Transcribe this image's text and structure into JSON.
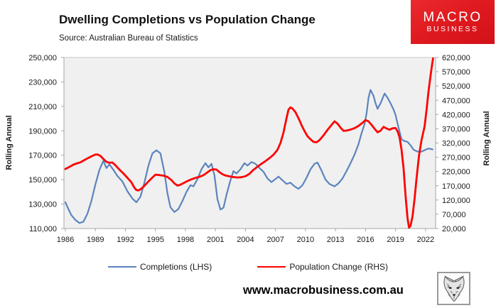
{
  "header": {
    "title": "Dwelling Completions vs Population Change",
    "source": "Source: Australian Bureau of Statistics",
    "logo": {
      "line1": "MACRO",
      "line2": "BUSINESS",
      "bg_color": "#DE1219",
      "text_color": "#FFFFFF"
    }
  },
  "footer": {
    "url": "www.macrobusiness.com.au",
    "icon": "wolf-head-sketch"
  },
  "chart_data": {
    "type": "line",
    "title": "Dwelling Completions vs Population Change",
    "plot_bg": "#F0F0F0",
    "plot_border": "#C8C8C8",
    "axis_color": "#A6A6A6",
    "grid": "off",
    "legend_position": "bottom",
    "left_axis": {
      "label": "Rolling Annual",
      "min": 110000,
      "max": 250000,
      "tick_values": [
        250000,
        230000,
        210000,
        190000,
        170000,
        150000,
        130000,
        110000
      ]
    },
    "right_axis": {
      "label": "Rolling Annual",
      "min": 20000,
      "max": 620000,
      "tick_values": [
        620000,
        570000,
        520000,
        470000,
        420000,
        370000,
        320000,
        270000,
        220000,
        170000,
        120000,
        70000,
        20000
      ]
    },
    "x_axis": {
      "tick_years": [
        1986,
        1989,
        1992,
        1995,
        1998,
        2001,
        2004,
        2007,
        2010,
        2013,
        2016,
        2019,
        2022
      ]
    },
    "series": [
      {
        "name": "Completions (LHS)",
        "axis": "left",
        "color": "#5B84BD",
        "width": 2.2,
        "points": [
          [
            1986.0,
            131500
          ],
          [
            1986.3,
            126000
          ],
          [
            1986.6,
            121000
          ],
          [
            1987.0,
            117000
          ],
          [
            1987.4,
            114500
          ],
          [
            1987.8,
            115500
          ],
          [
            1988.2,
            122000
          ],
          [
            1988.6,
            132500
          ],
          [
            1989.0,
            146000
          ],
          [
            1989.4,
            158000
          ],
          [
            1989.8,
            165500
          ],
          [
            1990.1,
            159500
          ],
          [
            1990.4,
            162500
          ],
          [
            1990.8,
            158000
          ],
          [
            1991.2,
            153000
          ],
          [
            1991.7,
            148500
          ],
          [
            1992.2,
            140500
          ],
          [
            1992.7,
            134500
          ],
          [
            1993.1,
            131500
          ],
          [
            1993.5,
            136000
          ],
          [
            1993.9,
            147500
          ],
          [
            1994.3,
            161500
          ],
          [
            1994.7,
            171500
          ],
          [
            1995.1,
            174000
          ],
          [
            1995.5,
            171500
          ],
          [
            1995.9,
            156000
          ],
          [
            1996.2,
            139000
          ],
          [
            1996.5,
            127500
          ],
          [
            1996.9,
            123500
          ],
          [
            1997.3,
            126000
          ],
          [
            1997.7,
            132500
          ],
          [
            1998.1,
            140000
          ],
          [
            1998.5,
            145500
          ],
          [
            1998.8,
            144500
          ],
          [
            1999.2,
            150500
          ],
          [
            1999.6,
            158500
          ],
          [
            2000.0,
            163500
          ],
          [
            2000.3,
            160000
          ],
          [
            2000.6,
            163000
          ],
          [
            2000.9,
            153500
          ],
          [
            2001.2,
            134000
          ],
          [
            2001.5,
            125500
          ],
          [
            2001.8,
            127000
          ],
          [
            2002.1,
            137500
          ],
          [
            2002.5,
            149500
          ],
          [
            2002.8,
            157000
          ],
          [
            2003.1,
            155000
          ],
          [
            2003.5,
            158500
          ],
          [
            2003.9,
            163500
          ],
          [
            2004.2,
            161500
          ],
          [
            2004.6,
            164500
          ],
          [
            2005.0,
            163000
          ],
          [
            2005.4,
            159500
          ],
          [
            2005.8,
            156500
          ],
          [
            2006.2,
            151000
          ],
          [
            2006.6,
            148000
          ],
          [
            2007.0,
            150500
          ],
          [
            2007.3,
            152500
          ],
          [
            2007.7,
            149500
          ],
          [
            2008.1,
            146500
          ],
          [
            2008.5,
            147500
          ],
          [
            2008.9,
            144500
          ],
          [
            2009.3,
            142500
          ],
          [
            2009.7,
            145500
          ],
          [
            2010.1,
            151500
          ],
          [
            2010.5,
            158500
          ],
          [
            2010.9,
            163000
          ],
          [
            2011.2,
            164000
          ],
          [
            2011.6,
            157500
          ],
          [
            2012.0,
            150000
          ],
          [
            2012.4,
            146500
          ],
          [
            2012.9,
            144500
          ],
          [
            2013.3,
            147000
          ],
          [
            2013.7,
            151000
          ],
          [
            2014.1,
            157000
          ],
          [
            2014.5,
            163500
          ],
          [
            2014.9,
            170500
          ],
          [
            2015.3,
            179000
          ],
          [
            2015.6,
            188000
          ],
          [
            2015.9,
            195500
          ],
          [
            2016.1,
            204000
          ],
          [
            2016.3,
            217000
          ],
          [
            2016.5,
            223500
          ],
          [
            2016.8,
            218500
          ],
          [
            2017.0,
            212500
          ],
          [
            2017.2,
            208000
          ],
          [
            2017.5,
            212500
          ],
          [
            2017.9,
            220500
          ],
          [
            2018.2,
            217000
          ],
          [
            2018.5,
            212500
          ],
          [
            2018.8,
            207500
          ],
          [
            2019.0,
            203000
          ],
          [
            2019.3,
            192500
          ],
          [
            2019.6,
            183000
          ],
          [
            2019.9,
            181500
          ],
          [
            2020.2,
            181000
          ],
          [
            2020.5,
            178000
          ],
          [
            2020.8,
            174500
          ],
          [
            2021.2,
            173000
          ],
          [
            2021.6,
            173000
          ],
          [
            2022.0,
            174500
          ],
          [
            2022.3,
            175500
          ],
          [
            2022.7,
            174800
          ]
        ]
      },
      {
        "name": "Population Change (RHS)",
        "axis": "right",
        "color": "#FE0000",
        "width": 2.8,
        "points": [
          [
            1986.0,
            229000
          ],
          [
            1986.4,
            236000
          ],
          [
            1986.8,
            244000
          ],
          [
            1987.2,
            249000
          ],
          [
            1987.5,
            252000
          ],
          [
            1987.8,
            258000
          ],
          [
            1988.2,
            266000
          ],
          [
            1988.6,
            273000
          ],
          [
            1989.0,
            279500
          ],
          [
            1989.2,
            280000
          ],
          [
            1989.5,
            275000
          ],
          [
            1989.8,
            264000
          ],
          [
            1990.1,
            254000
          ],
          [
            1990.4,
            250500
          ],
          [
            1990.7,
            251500
          ],
          [
            1991.0,
            242000
          ],
          [
            1991.4,
            227000
          ],
          [
            1991.8,
            213000
          ],
          [
            1992.2,
            198000
          ],
          [
            1992.6,
            182000
          ],
          [
            1992.9,
            163000
          ],
          [
            1993.1,
            155000
          ],
          [
            1993.3,
            153500
          ],
          [
            1993.6,
            160000
          ],
          [
            1993.9,
            170000
          ],
          [
            1994.3,
            185000
          ],
          [
            1994.7,
            199000
          ],
          [
            1995.0,
            209000
          ],
          [
            1995.4,
            207500
          ],
          [
            1995.8,
            205500
          ],
          [
            1996.2,
            201000
          ],
          [
            1996.6,
            190000
          ],
          [
            1996.9,
            178000
          ],
          [
            1997.2,
            170500
          ],
          [
            1997.5,
            173500
          ],
          [
            1997.8,
            179000
          ],
          [
            1998.2,
            186500
          ],
          [
            1998.6,
            192500
          ],
          [
            1999.0,
            197500
          ],
          [
            1999.4,
            201500
          ],
          [
            1999.8,
            207000
          ],
          [
            2000.2,
            217000
          ],
          [
            2000.5,
            225000
          ],
          [
            2000.8,
            228000
          ],
          [
            2001.1,
            227000
          ],
          [
            2001.4,
            218000
          ],
          [
            2001.7,
            210500
          ],
          [
            2002.0,
            206000
          ],
          [
            2002.4,
            203000
          ],
          [
            2002.8,
            200500
          ],
          [
            2003.2,
            199000
          ],
          [
            2003.6,
            200000
          ],
          [
            2004.0,
            203500
          ],
          [
            2004.4,
            212000
          ],
          [
            2004.8,
            226000
          ],
          [
            2005.2,
            236500
          ],
          [
            2005.6,
            247000
          ],
          [
            2006.0,
            256500
          ],
          [
            2006.4,
            267000
          ],
          [
            2006.8,
            279000
          ],
          [
            2007.2,
            296000
          ],
          [
            2007.5,
            320000
          ],
          [
            2007.8,
            356000
          ],
          [
            2008.1,
            407000
          ],
          [
            2008.3,
            437000
          ],
          [
            2008.5,
            445000
          ],
          [
            2008.7,
            441000
          ],
          [
            2009.0,
            428000
          ],
          [
            2009.3,
            407000
          ],
          [
            2009.6,
            383000
          ],
          [
            2009.9,
            362000
          ],
          [
            2010.2,
            344000
          ],
          [
            2010.5,
            333000
          ],
          [
            2010.8,
            324000
          ],
          [
            2011.1,
            322500
          ],
          [
            2011.4,
            330000
          ],
          [
            2011.8,
            347000
          ],
          [
            2012.2,
            366000
          ],
          [
            2012.6,
            383000
          ],
          [
            2012.9,
            396000
          ],
          [
            2013.2,
            388000
          ],
          [
            2013.5,
            374000
          ],
          [
            2013.8,
            362500
          ],
          [
            2014.1,
            363500
          ],
          [
            2014.5,
            367000
          ],
          [
            2014.9,
            372000
          ],
          [
            2015.3,
            380000
          ],
          [
            2015.7,
            391000
          ],
          [
            2016.0,
            400500
          ],
          [
            2016.3,
            396000
          ],
          [
            2016.6,
            384000
          ],
          [
            2016.9,
            370000
          ],
          [
            2017.2,
            357500
          ],
          [
            2017.5,
            363000
          ],
          [
            2017.8,
            376500
          ],
          [
            2018.1,
            371000
          ],
          [
            2018.4,
            366500
          ],
          [
            2018.7,
            371500
          ],
          [
            2019.0,
            372500
          ],
          [
            2019.2,
            361000
          ],
          [
            2019.4,
            340000
          ],
          [
            2019.6,
            296000
          ],
          [
            2019.8,
            232000
          ],
          [
            2020.0,
            136000
          ],
          [
            2020.2,
            56000
          ],
          [
            2020.35,
            23000
          ],
          [
            2020.5,
            30000
          ],
          [
            2020.7,
            64000
          ],
          [
            2020.9,
            124000
          ],
          [
            2021.1,
            196000
          ],
          [
            2021.35,
            277000
          ],
          [
            2021.6,
            330000
          ],
          [
            2021.9,
            378000
          ],
          [
            2022.1,
            437000
          ],
          [
            2022.3,
            503000
          ],
          [
            2022.5,
            556000
          ],
          [
            2022.65,
            594000
          ],
          [
            2022.75,
            617000
          ]
        ]
      }
    ],
    "legend": [
      "Completions (LHS)",
      "Population Change (RHS)"
    ]
  }
}
